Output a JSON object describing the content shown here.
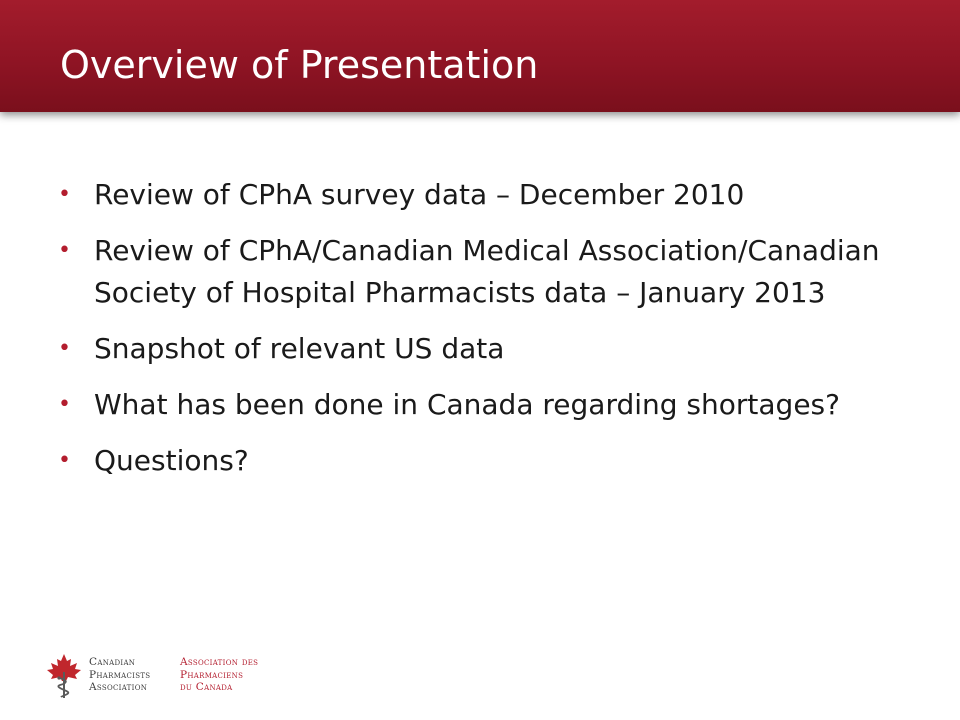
{
  "slide": {
    "title": "Overview of Presentation",
    "bullet_symbol": "•",
    "bullets": [
      "Review of CPhA survey data – December 2010",
      "Review of CPhA/Canadian Medical Association/Canadian Society of Hospital Pharmacists data – January 2013",
      "Snapshot of relevant US data",
      "What has been done in Canada regarding shortages?",
      "Questions?"
    ]
  },
  "logo": {
    "english": [
      "Canadian",
      "Pharmacists",
      "Association"
    ],
    "french": [
      "Association des",
      "Pharmaciens",
      "du Canada"
    ],
    "icon": "maple-leaf-caduceus-icon",
    "colors": {
      "red": "#b31d2e",
      "grey": "#3a3a3a"
    }
  },
  "theme": {
    "title_band": "#8f1424",
    "title_text": "#ffffff",
    "bullet_color": "#b31d2e",
    "body_text": "#1a1a1a"
  }
}
